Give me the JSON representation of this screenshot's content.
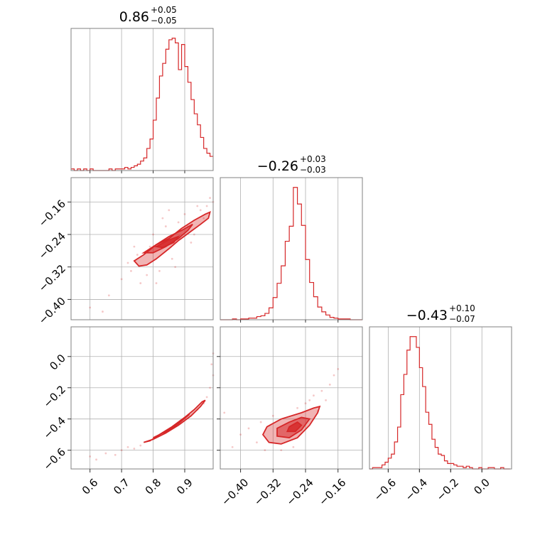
{
  "figure": {
    "color": "#d62728",
    "type": "corner-plot"
  },
  "titles": [
    {
      "value": "0.86",
      "plus": "+0.05",
      "minus": "−0.05"
    },
    {
      "value": "−0.26",
      "plus": "+0.03",
      "minus": "−0.03"
    },
    {
      "value": "−0.43",
      "plus": "+0.10",
      "minus": "−0.07"
    }
  ],
  "chart_data": {
    "type": "corner",
    "parameters": [
      {
        "range": [
          0.54,
          0.99
        ],
        "ticks": [
          0.6,
          0.7,
          0.8,
          0.9
        ],
        "tick_labels": [
          "0.6",
          "0.7",
          "0.8",
          "0.9"
        ]
      },
      {
        "range": [
          -0.45,
          -0.1
        ],
        "ticks": [
          -0.4,
          -0.32,
          -0.24,
          -0.16
        ],
        "tick_labels": [
          "−0.40",
          "−0.32",
          "−0.24",
          "−0.16"
        ]
      },
      {
        "range": [
          -0.72,
          0.19
        ],
        "ticks": [
          -0.6,
          -0.4,
          -0.2,
          0.0
        ],
        "tick_labels": [
          "−0.6",
          "−0.4",
          "−0.2",
          "0.0"
        ]
      }
    ],
    "histograms": [
      {
        "param": 0,
        "bin_edges": [
          0.54,
          0.55,
          0.56,
          0.57,
          0.58,
          0.59,
          0.6,
          0.61,
          0.62,
          0.63,
          0.64,
          0.65,
          0.66,
          0.67,
          0.68,
          0.69,
          0.7,
          0.71,
          0.72,
          0.73,
          0.74,
          0.75,
          0.76,
          0.77,
          0.78,
          0.79,
          0.8,
          0.81,
          0.82,
          0.83,
          0.84,
          0.85,
          0.86,
          0.87,
          0.88,
          0.89,
          0.9,
          0.91,
          0.92,
          0.93,
          0.94,
          0.95,
          0.96,
          0.97,
          0.98,
          0.99
        ],
        "counts": [
          1,
          0,
          1,
          0,
          1,
          0,
          1,
          0,
          0,
          0,
          0,
          0,
          1,
          0,
          1,
          1,
          1,
          2,
          1,
          2,
          3,
          4,
          6,
          8,
          14,
          20,
          32,
          46,
          60,
          68,
          77,
          83,
          84,
          81,
          64,
          80,
          66,
          56,
          45,
          36,
          29,
          21,
          14,
          11,
          9
        ]
      },
      {
        "param": 1,
        "bin_edges": [
          -0.45,
          -0.44,
          -0.43,
          -0.42,
          -0.41,
          -0.4,
          -0.39,
          -0.38,
          -0.37,
          -0.36,
          -0.35,
          -0.34,
          -0.33,
          -0.32,
          -0.31,
          -0.3,
          -0.29,
          -0.28,
          -0.27,
          -0.26,
          -0.25,
          -0.24,
          -0.23,
          -0.22,
          -0.21,
          -0.2,
          -0.19,
          -0.18,
          -0.17,
          -0.16,
          -0.15,
          -0.14,
          -0.13,
          -0.12,
          -0.11,
          -0.1
        ],
        "counts": [
          0,
          0,
          0,
          1,
          0,
          1,
          1,
          2,
          2,
          4,
          5,
          8,
          15,
          28,
          46,
          68,
          99,
          118,
          167,
          146,
          119,
          76,
          47,
          29,
          16,
          10,
          6,
          3,
          2,
          1,
          1,
          1,
          0,
          0,
          0
        ]
      },
      {
        "param": 2,
        "bin_edges": [
          -0.72,
          -0.7,
          -0.68,
          -0.66,
          -0.64,
          -0.62,
          -0.6,
          -0.58,
          -0.56,
          -0.54,
          -0.52,
          -0.5,
          -0.48,
          -0.46,
          -0.44,
          -0.42,
          -0.4,
          -0.38,
          -0.36,
          -0.34,
          -0.32,
          -0.3,
          -0.28,
          -0.26,
          -0.24,
          -0.22,
          -0.2,
          -0.18,
          -0.16,
          -0.14,
          -0.12,
          -0.1,
          -0.08,
          -0.06,
          -0.04,
          -0.02,
          0.0,
          0.02,
          0.04,
          0.06,
          0.08,
          0.1,
          0.12,
          0.14,
          0.16,
          0.18
        ],
        "counts": [
          0,
          1,
          1,
          1,
          3,
          5,
          8,
          11,
          20,
          31,
          55,
          70,
          88,
          98,
          98,
          90,
          75,
          61,
          42,
          33,
          22,
          16,
          11,
          10,
          6,
          4,
          4,
          3,
          2,
          2,
          1,
          2,
          1,
          0,
          0,
          1,
          0,
          0,
          1,
          1,
          0,
          0,
          1,
          0,
          0
        ]
      }
    ],
    "scatter_panels": [
      {
        "x_param": 0,
        "y_param": 1,
        "contours": [
          [
            [
              0.74,
              -0.305
            ],
            [
              0.77,
              -0.29
            ],
            [
              0.81,
              -0.265
            ],
            [
              0.85,
              -0.25
            ],
            [
              0.89,
              -0.225
            ],
            [
              0.93,
              -0.205
            ],
            [
              0.965,
              -0.19
            ],
            [
              0.98,
              -0.185
            ],
            [
              0.975,
              -0.2
            ],
            [
              0.95,
              -0.215
            ],
            [
              0.915,
              -0.235
            ],
            [
              0.88,
              -0.255
            ],
            [
              0.85,
              -0.275
            ],
            [
              0.81,
              -0.3
            ],
            [
              0.78,
              -0.315
            ],
            [
              0.755,
              -0.318
            ]
          ],
          [
            [
              0.77,
              -0.285
            ],
            [
              0.81,
              -0.265
            ],
            [
              0.85,
              -0.245
            ],
            [
              0.89,
              -0.23
            ],
            [
              0.925,
              -0.215
            ],
            [
              0.91,
              -0.23
            ],
            [
              0.88,
              -0.25
            ],
            [
              0.84,
              -0.27
            ],
            [
              0.8,
              -0.285
            ]
          ],
          [
            [
              0.81,
              -0.27
            ],
            [
              0.845,
              -0.255
            ],
            [
              0.88,
              -0.245
            ],
            [
              0.865,
              -0.26
            ],
            [
              0.83,
              -0.272
            ]
          ]
        ],
        "points": [
          [
            0.72,
            -0.31
          ],
          [
            0.75,
            -0.29
          ],
          [
            0.78,
            -0.34
          ],
          [
            0.79,
            -0.27
          ],
          [
            0.82,
            -0.33
          ],
          [
            0.84,
            -0.22
          ],
          [
            0.86,
            -0.3
          ],
          [
            0.88,
            -0.21
          ],
          [
            0.9,
            -0.19
          ],
          [
            0.92,
            -0.26
          ],
          [
            0.94,
            -0.17
          ],
          [
            0.96,
            -0.2
          ],
          [
            0.98,
            -0.15
          ],
          [
            0.99,
            -0.16
          ],
          [
            0.97,
            -0.17
          ],
          [
            0.76,
            -0.36
          ],
          [
            0.74,
            -0.27
          ],
          [
            0.8,
            -0.24
          ],
          [
            0.83,
            -0.2
          ],
          [
            0.87,
            -0.32
          ],
          [
            0.7,
            -0.35
          ],
          [
            0.66,
            -0.39
          ],
          [
            0.64,
            -0.43
          ],
          [
            0.6,
            -0.42
          ],
          [
            0.73,
            -0.33
          ],
          [
            0.81,
            -0.36
          ],
          [
            0.85,
            -0.18
          ],
          [
            0.91,
            -0.22
          ],
          [
            0.93,
            -0.24
          ],
          [
            0.95,
            -0.18
          ]
        ]
      },
      {
        "x_param": 0,
        "y_param": 2,
        "contours": [
          [
            [
              0.77,
              -0.55
            ],
            [
              0.8,
              -0.53
            ],
            [
              0.84,
              -0.49
            ],
            [
              0.88,
              -0.44
            ],
            [
              0.92,
              -0.38
            ],
            [
              0.95,
              -0.32
            ],
            [
              0.965,
              -0.28
            ],
            [
              0.955,
              -0.29
            ],
            [
              0.93,
              -0.34
            ],
            [
              0.9,
              -0.39
            ],
            [
              0.86,
              -0.45
            ],
            [
              0.82,
              -0.5
            ],
            [
              0.79,
              -0.54
            ]
          ],
          [
            [
              0.8,
              -0.52
            ],
            [
              0.84,
              -0.48
            ],
            [
              0.88,
              -0.43
            ],
            [
              0.915,
              -0.37
            ],
            [
              0.9,
              -0.39
            ],
            [
              0.86,
              -0.45
            ],
            [
              0.82,
              -0.5
            ]
          ],
          [
            [
              0.83,
              -0.49
            ],
            [
              0.86,
              -0.455
            ],
            [
              0.885,
              -0.42
            ],
            [
              0.87,
              -0.445
            ],
            [
              0.845,
              -0.48
            ]
          ]
        ],
        "points": [
          [
            0.7,
            -0.6
          ],
          [
            0.72,
            -0.58
          ],
          [
            0.74,
            -0.59
          ],
          [
            0.76,
            -0.57
          ],
          [
            0.97,
            -0.26
          ],
          [
            0.98,
            -0.2
          ],
          [
            0.99,
            -0.12
          ],
          [
            0.985,
            -0.05
          ],
          [
            0.99,
            0.02
          ],
          [
            0.96,
            -0.3
          ],
          [
            0.94,
            -0.34
          ],
          [
            0.65,
            -0.62
          ],
          [
            0.62,
            -0.66
          ],
          [
            0.6,
            -0.64
          ],
          [
            0.68,
            -0.63
          ]
        ]
      },
      {
        "x_param": 1,
        "y_param": 2,
        "contours": [
          [
            [
              -0.33,
              -0.55
            ],
            [
              -0.3,
              -0.56
            ],
            [
              -0.26,
              -0.52
            ],
            [
              -0.23,
              -0.44
            ],
            [
              -0.21,
              -0.36
            ],
            [
              -0.205,
              -0.32
            ],
            [
              -0.22,
              -0.33
            ],
            [
              -0.25,
              -0.36
            ],
            [
              -0.3,
              -0.4
            ],
            [
              -0.335,
              -0.45
            ],
            [
              -0.345,
              -0.5
            ]
          ],
          [
            [
              -0.31,
              -0.51
            ],
            [
              -0.28,
              -0.52
            ],
            [
              -0.25,
              -0.47
            ],
            [
              -0.23,
              -0.4
            ],
            [
              -0.25,
              -0.39
            ],
            [
              -0.28,
              -0.42
            ],
            [
              -0.31,
              -0.46
            ]
          ],
          [
            [
              -0.285,
              -0.48
            ],
            [
              -0.265,
              -0.48
            ],
            [
              -0.25,
              -0.44
            ],
            [
              -0.26,
              -0.42
            ],
            [
              -0.28,
              -0.45
            ]
          ]
        ],
        "points": [
          [
            -0.4,
            -0.5
          ],
          [
            -0.38,
            -0.46
          ],
          [
            -0.36,
            -0.55
          ],
          [
            -0.35,
            -0.42
          ],
          [
            -0.34,
            -0.6
          ],
          [
            -0.3,
            -0.6
          ],
          [
            -0.24,
            -0.3
          ],
          [
            -0.22,
            -0.25
          ],
          [
            -0.2,
            -0.22
          ],
          [
            -0.19,
            -0.28
          ],
          [
            -0.17,
            -0.12
          ],
          [
            -0.16,
            -0.08
          ],
          [
            -0.18,
            -0.18
          ],
          [
            -0.21,
            -0.35
          ],
          [
            -0.27,
            -0.58
          ],
          [
            -0.44,
            -0.36
          ],
          [
            -0.42,
            -0.58
          ],
          [
            -0.32,
            -0.38
          ],
          [
            -0.26,
            -0.33
          ],
          [
            -0.23,
            -0.28
          ]
        ]
      }
    ]
  }
}
